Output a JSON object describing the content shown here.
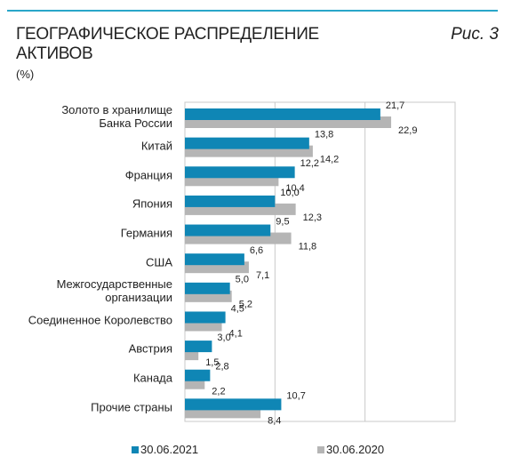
{
  "chart_data": {
    "type": "hbar",
    "title": "ГЕОГРАФИЧЕСКОЕ РАСПРЕДЕЛЕНИЕ АКТИВОВ",
    "subtitle": "(%)",
    "figure_label": "Рис. 3",
    "categories": [
      "Золото в хранилище\nБанка России",
      "Китай",
      "Франция",
      "Япония",
      "Германия",
      "США",
      "Межгосударственные\nорганизации",
      "Соединенное Королевство",
      "Австрия",
      "Канада",
      "Прочие страны"
    ],
    "series": [
      {
        "name": "30.06.2021",
        "color": "#0f86b5",
        "values": [
          21.7,
          13.8,
          12.2,
          10.0,
          9.5,
          6.6,
          5.0,
          4.5,
          3.0,
          2.8,
          10.7
        ],
        "value_labels": [
          "21,7",
          "13,8",
          "12,2",
          "10,0",
          "9,5",
          "6,6",
          "5,0",
          "4,5",
          "3,0",
          "2,8",
          "10,7"
        ]
      },
      {
        "name": "30.06.2020",
        "color": "#b5b5b5",
        "values": [
          22.9,
          14.2,
          10.4,
          12.3,
          11.8,
          7.1,
          5.2,
          4.1,
          1.5,
          2.2,
          8.4
        ],
        "value_labels": [
          "22,9",
          "14,2",
          "10,4",
          "12,3",
          "11,8",
          "7,1",
          "5,2",
          "4,1",
          "1,5",
          "2,2",
          "8,4"
        ]
      }
    ],
    "xlim": [
      0,
      30
    ],
    "xticks": [
      0,
      10,
      20,
      30
    ],
    "grid": true
  }
}
